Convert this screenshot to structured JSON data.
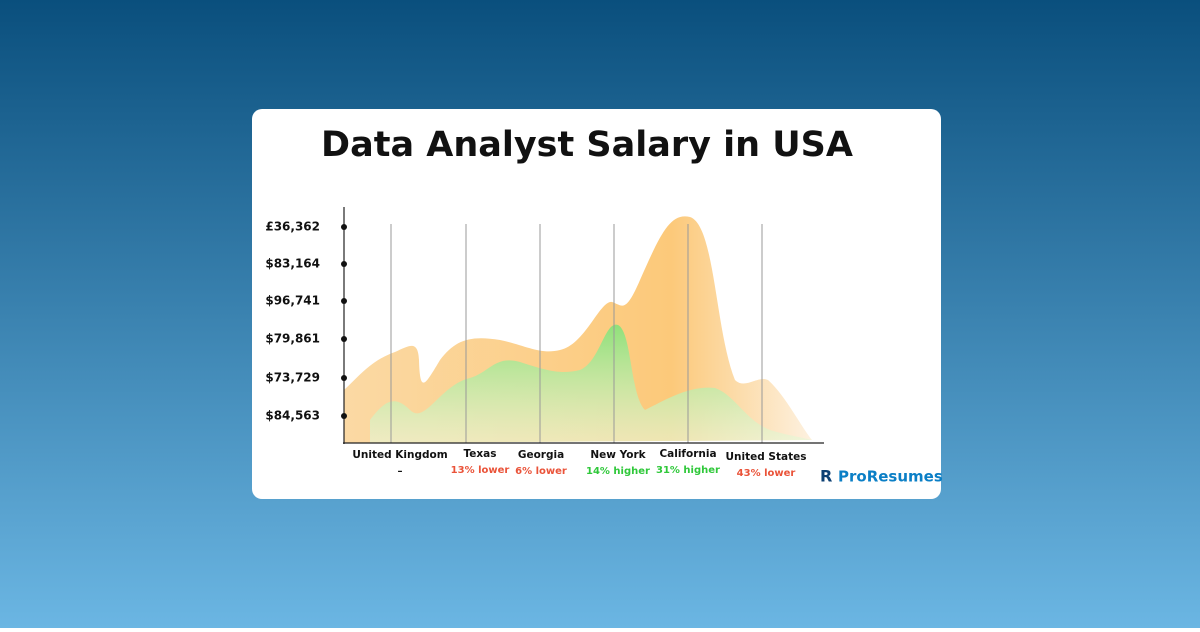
{
  "title": "Data Analyst Salary in USA",
  "axis_labels": [
    "£36,362",
    "$83,164",
    "$96,741",
    "$79,861",
    "$73,729",
    "$84,563"
  ],
  "regions": [
    {
      "name": "United Kingdom",
      "comparison": "–"
    },
    {
      "name": "Texas",
      "comparison": "13% lower"
    },
    {
      "name": "Georgia",
      "comparison": "6% lower"
    },
    {
      "name": "New York",
      "comparison": "14% higher"
    },
    {
      "name": "California",
      "comparison": "31% higher"
    },
    {
      "name": "United States",
      "comparison": "43% lower"
    }
  ],
  "logo": "ProResumes"
}
